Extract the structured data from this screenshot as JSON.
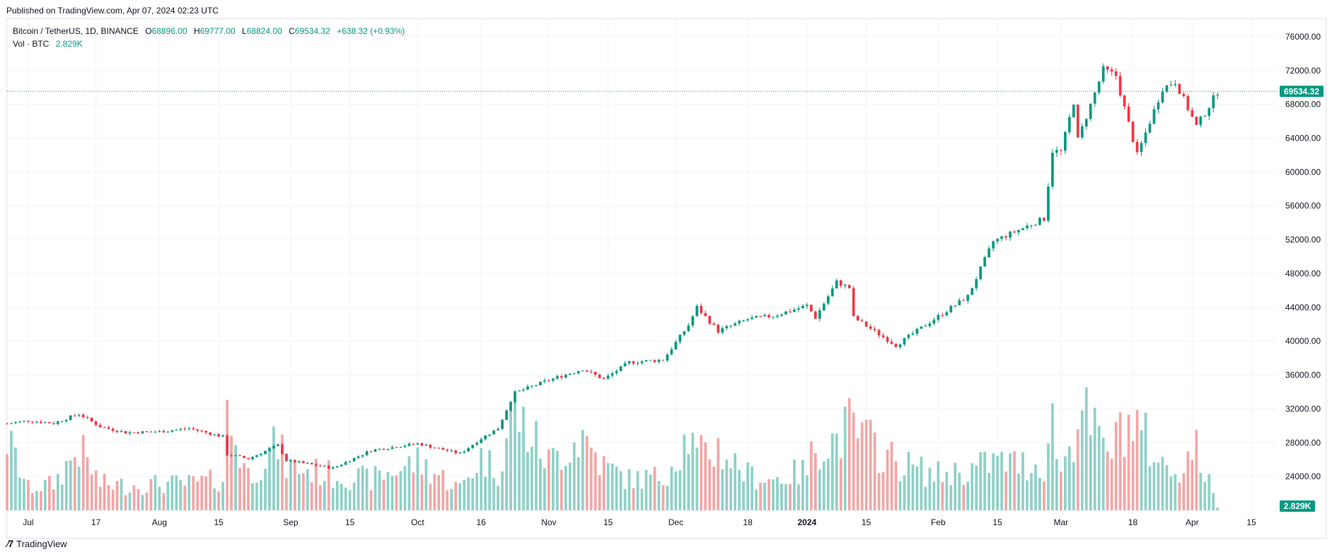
{
  "header": {
    "published": "Published on TradingView.com, Apr 07, 2024 02:23 UTC"
  },
  "legend": {
    "symbol": "Bitcoin / TetherUS, 1D, BINANCE",
    "open_key": "O",
    "open": "68896.00",
    "high_key": "H",
    "high": "69777.00",
    "low_key": "L",
    "low": "68824.00",
    "close_key": "C",
    "close": "69534.32",
    "change": "+638.32 (+0.93%)",
    "vol_key": "Vol · BTC",
    "vol": "2.829K"
  },
  "footer": {
    "brand": "TradingView"
  },
  "colors": {
    "up": "#089981",
    "down": "#f23645",
    "up_vol": "#8fd1c7",
    "down_vol": "#f4a6a6",
    "grid": "#f0f3fa"
  },
  "chart_data": {
    "type": "candlestick",
    "symbol": "Bitcoin / TetherUS",
    "interval": "1D",
    "exchange": "BINANCE",
    "ylim": [
      20000,
      78000
    ],
    "y_ticks": [
      24000,
      28000,
      32000,
      36000,
      40000,
      44000,
      48000,
      52000,
      56000,
      60000,
      64000,
      68000,
      72000,
      76000
    ],
    "x_ticks": [
      {
        "label": "Jul",
        "date": "2023-07-01"
      },
      {
        "label": "17",
        "date": "2023-07-17"
      },
      {
        "label": "Aug",
        "date": "2023-08-01"
      },
      {
        "label": "15",
        "date": "2023-08-15"
      },
      {
        "label": "Sep",
        "date": "2023-09-01"
      },
      {
        "label": "15",
        "date": "2023-09-15"
      },
      {
        "label": "Oct",
        "date": "2023-10-01"
      },
      {
        "label": "16",
        "date": "2023-10-16"
      },
      {
        "label": "Nov",
        "date": "2023-11-01"
      },
      {
        "label": "15",
        "date": "2023-11-15"
      },
      {
        "label": "Dec",
        "date": "2023-12-01"
      },
      {
        "label": "18",
        "date": "2023-12-18"
      },
      {
        "label": "2024",
        "date": "2024-01-01",
        "bold": true
      },
      {
        "label": "15",
        "date": "2024-01-15"
      },
      {
        "label": "Feb",
        "date": "2024-02-01"
      },
      {
        "label": "15",
        "date": "2024-02-15"
      },
      {
        "label": "Mar",
        "date": "2024-03-01"
      },
      {
        "label": "18",
        "date": "2024-03-18"
      },
      {
        "label": "Apr",
        "date": "2024-04-01"
      },
      {
        "label": "15",
        "date": "2024-04-15"
      }
    ],
    "last_price": 69534.32,
    "last_price_label": "69534.32",
    "last_volume_label": "2.829K",
    "candles": [
      {
        "date": "2023-06-26",
        "c": 30250,
        "v": 80
      },
      {
        "date": "2023-07-01",
        "c": 30600,
        "v": 25
      },
      {
        "date": "2023-07-07",
        "c": 30300,
        "v": 30
      },
      {
        "date": "2023-07-13",
        "c": 31400,
        "v": 70
      },
      {
        "date": "2023-07-18",
        "c": 29900,
        "v": 30
      },
      {
        "date": "2023-07-24",
        "c": 29200,
        "v": 28
      },
      {
        "date": "2023-08-01",
        "c": 29300,
        "v": 30
      },
      {
        "date": "2023-08-08",
        "c": 29700,
        "v": 30
      },
      {
        "date": "2023-08-16",
        "c": 28700,
        "v": 35
      },
      {
        "date": "2023-08-17",
        "c": 26600,
        "v": 105
      },
      {
        "date": "2023-08-22",
        "c": 26100,
        "v": 40
      },
      {
        "date": "2023-08-29",
        "c": 27700,
        "v": 75
      },
      {
        "date": "2023-08-31",
        "c": 25900,
        "v": 50
      },
      {
        "date": "2023-09-11",
        "c": 25000,
        "v": 40
      },
      {
        "date": "2023-09-20",
        "c": 27100,
        "v": 35
      },
      {
        "date": "2023-10-01",
        "c": 27900,
        "v": 55
      },
      {
        "date": "2023-10-11",
        "c": 26700,
        "v": 25
      },
      {
        "date": "2023-10-16",
        "c": 28500,
        "v": 60
      },
      {
        "date": "2023-10-20",
        "c": 29700,
        "v": 45
      },
      {
        "date": "2023-10-23",
        "c": 33000,
        "v": 100
      },
      {
        "date": "2023-10-24",
        "c": 33900,
        "v": 110
      },
      {
        "date": "2023-11-01",
        "c": 35400,
        "v": 55
      },
      {
        "date": "2023-11-09",
        "c": 36700,
        "v": 85
      },
      {
        "date": "2023-11-14",
        "c": 35500,
        "v": 50
      },
      {
        "date": "2023-11-20",
        "c": 37500,
        "v": 35
      },
      {
        "date": "2023-11-28",
        "c": 37800,
        "v": 38
      },
      {
        "date": "2023-12-04",
        "c": 41900,
        "v": 85
      },
      {
        "date": "2023-12-06",
        "c": 44000,
        "v": 60
      },
      {
        "date": "2023-12-11",
        "c": 41200,
        "v": 70
      },
      {
        "date": "2023-12-18",
        "c": 42600,
        "v": 40
      },
      {
        "date": "2023-12-24",
        "c": 43000,
        "v": 35
      },
      {
        "date": "2024-01-01",
        "c": 44200,
        "v": 45
      },
      {
        "date": "2024-01-03",
        "c": 42800,
        "v": 75
      },
      {
        "date": "2024-01-08",
        "c": 47000,
        "v": 80
      },
      {
        "date": "2024-01-11",
        "c": 46300,
        "v": 95
      },
      {
        "date": "2024-01-12",
        "c": 42800,
        "v": 90
      },
      {
        "date": "2024-01-22",
        "c": 39500,
        "v": 55
      },
      {
        "date": "2024-01-31",
        "c": 42600,
        "v": 40
      },
      {
        "date": "2024-02-08",
        "c": 45300,
        "v": 45
      },
      {
        "date": "2024-02-14",
        "c": 51800,
        "v": 55
      },
      {
        "date": "2024-02-26",
        "c": 54500,
        "v": 50
      },
      {
        "date": "2024-02-28",
        "c": 62500,
        "v": 100
      },
      {
        "date": "2024-03-01",
        "c": 62400,
        "v": 45
      },
      {
        "date": "2024-03-04",
        "c": 68300,
        "v": 85
      },
      {
        "date": "2024-03-05",
        "c": 63800,
        "v": 120
      },
      {
        "date": "2024-03-11",
        "c": 72100,
        "v": 70
      },
      {
        "date": "2024-03-14",
        "c": 71400,
        "v": 75
      },
      {
        "date": "2024-03-15",
        "c": 69400,
        "v": 100
      },
      {
        "date": "2024-03-19",
        "c": 62000,
        "v": 95
      },
      {
        "date": "2024-03-25",
        "c": 69900,
        "v": 50
      },
      {
        "date": "2024-03-28",
        "c": 70700,
        "v": 45
      },
      {
        "date": "2024-04-02",
        "c": 65400,
        "v": 70
      },
      {
        "date": "2024-04-05",
        "c": 67800,
        "v": 30
      },
      {
        "date": "2024-04-07",
        "c": 69534,
        "v": 4
      }
    ]
  }
}
